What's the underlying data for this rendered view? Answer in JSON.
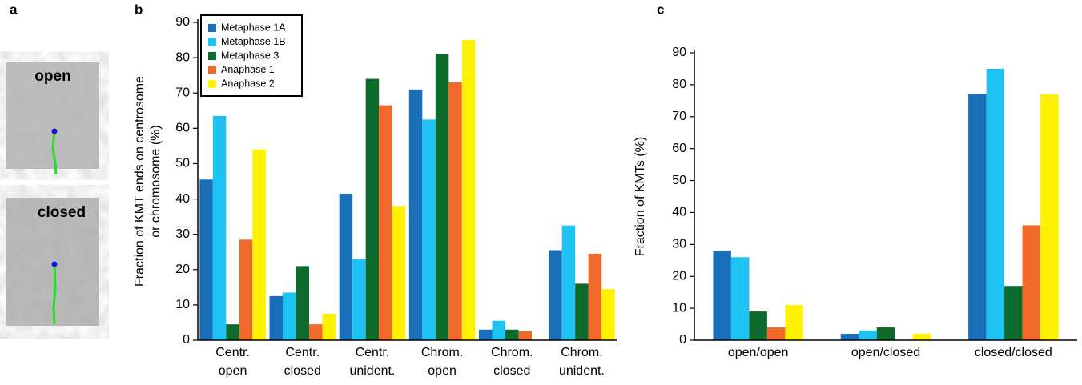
{
  "panel_a": {
    "label": "a",
    "images": [
      "open",
      "closed"
    ]
  },
  "chart_data": [
    {
      "type": "bar",
      "panel_label": "b",
      "ylabel": [
        "Fraction of KMT ends on centrosome",
        "or chromosome (%)"
      ],
      "categories": [
        "Centr. open",
        "Centr. closed",
        "Centr. unident.",
        "Chrom. open",
        "Chrom. closed",
        "Chrom. unident."
      ],
      "series": [
        {
          "name": "Metaphase 1A",
          "color": "#1a70b8",
          "values": [
            45.5,
            12.5,
            41.5,
            71,
            3,
            25.5
          ]
        },
        {
          "name": "Metaphase 1B",
          "color": "#1fc3f3",
          "values": [
            63.5,
            13.5,
            23,
            62.5,
            5.5,
            32.5
          ]
        },
        {
          "name": "Metaphase 3",
          "color": "#0d6a2c",
          "values": [
            4.5,
            21,
            74,
            81,
            3,
            16
          ]
        },
        {
          "name": "Anaphase 1",
          "color": "#f06a2c",
          "values": [
            28.5,
            4.5,
            66.5,
            73,
            2.5,
            24.5
          ]
        },
        {
          "name": "Anaphase 2",
          "color": "#fff200",
          "values": [
            54,
            7.5,
            38,
            85,
            0,
            14.5
          ]
        }
      ],
      "ylim": [
        0,
        90
      ],
      "yticks": [
        0,
        10,
        20,
        30,
        40,
        50,
        60,
        70,
        80,
        90
      ],
      "legend": "upper-left"
    },
    {
      "type": "bar",
      "panel_label": "c",
      "ylabel": [
        "Fraction of KMTs (%)"
      ],
      "categories": [
        "open/open",
        "open/closed",
        "closed/closed"
      ],
      "series": [
        {
          "name": "Metaphase 1A",
          "color": "#1a70b8",
          "values": [
            28,
            2,
            77
          ]
        },
        {
          "name": "Metaphase 1B",
          "color": "#1fc3f3",
          "values": [
            26,
            3,
            85
          ]
        },
        {
          "name": "Metaphase 3",
          "color": "#0d6a2c",
          "values": [
            9,
            4,
            17
          ]
        },
        {
          "name": "Anaphase 1",
          "color": "#f06a2c",
          "values": [
            4,
            0,
            36
          ]
        },
        {
          "name": "Anaphase 2",
          "color": "#fff200",
          "values": [
            11,
            2,
            77
          ]
        }
      ],
      "ylim": [
        0,
        90
      ],
      "yticks": [
        0,
        10,
        20,
        30,
        40,
        50,
        60,
        70,
        80,
        90
      ]
    }
  ]
}
